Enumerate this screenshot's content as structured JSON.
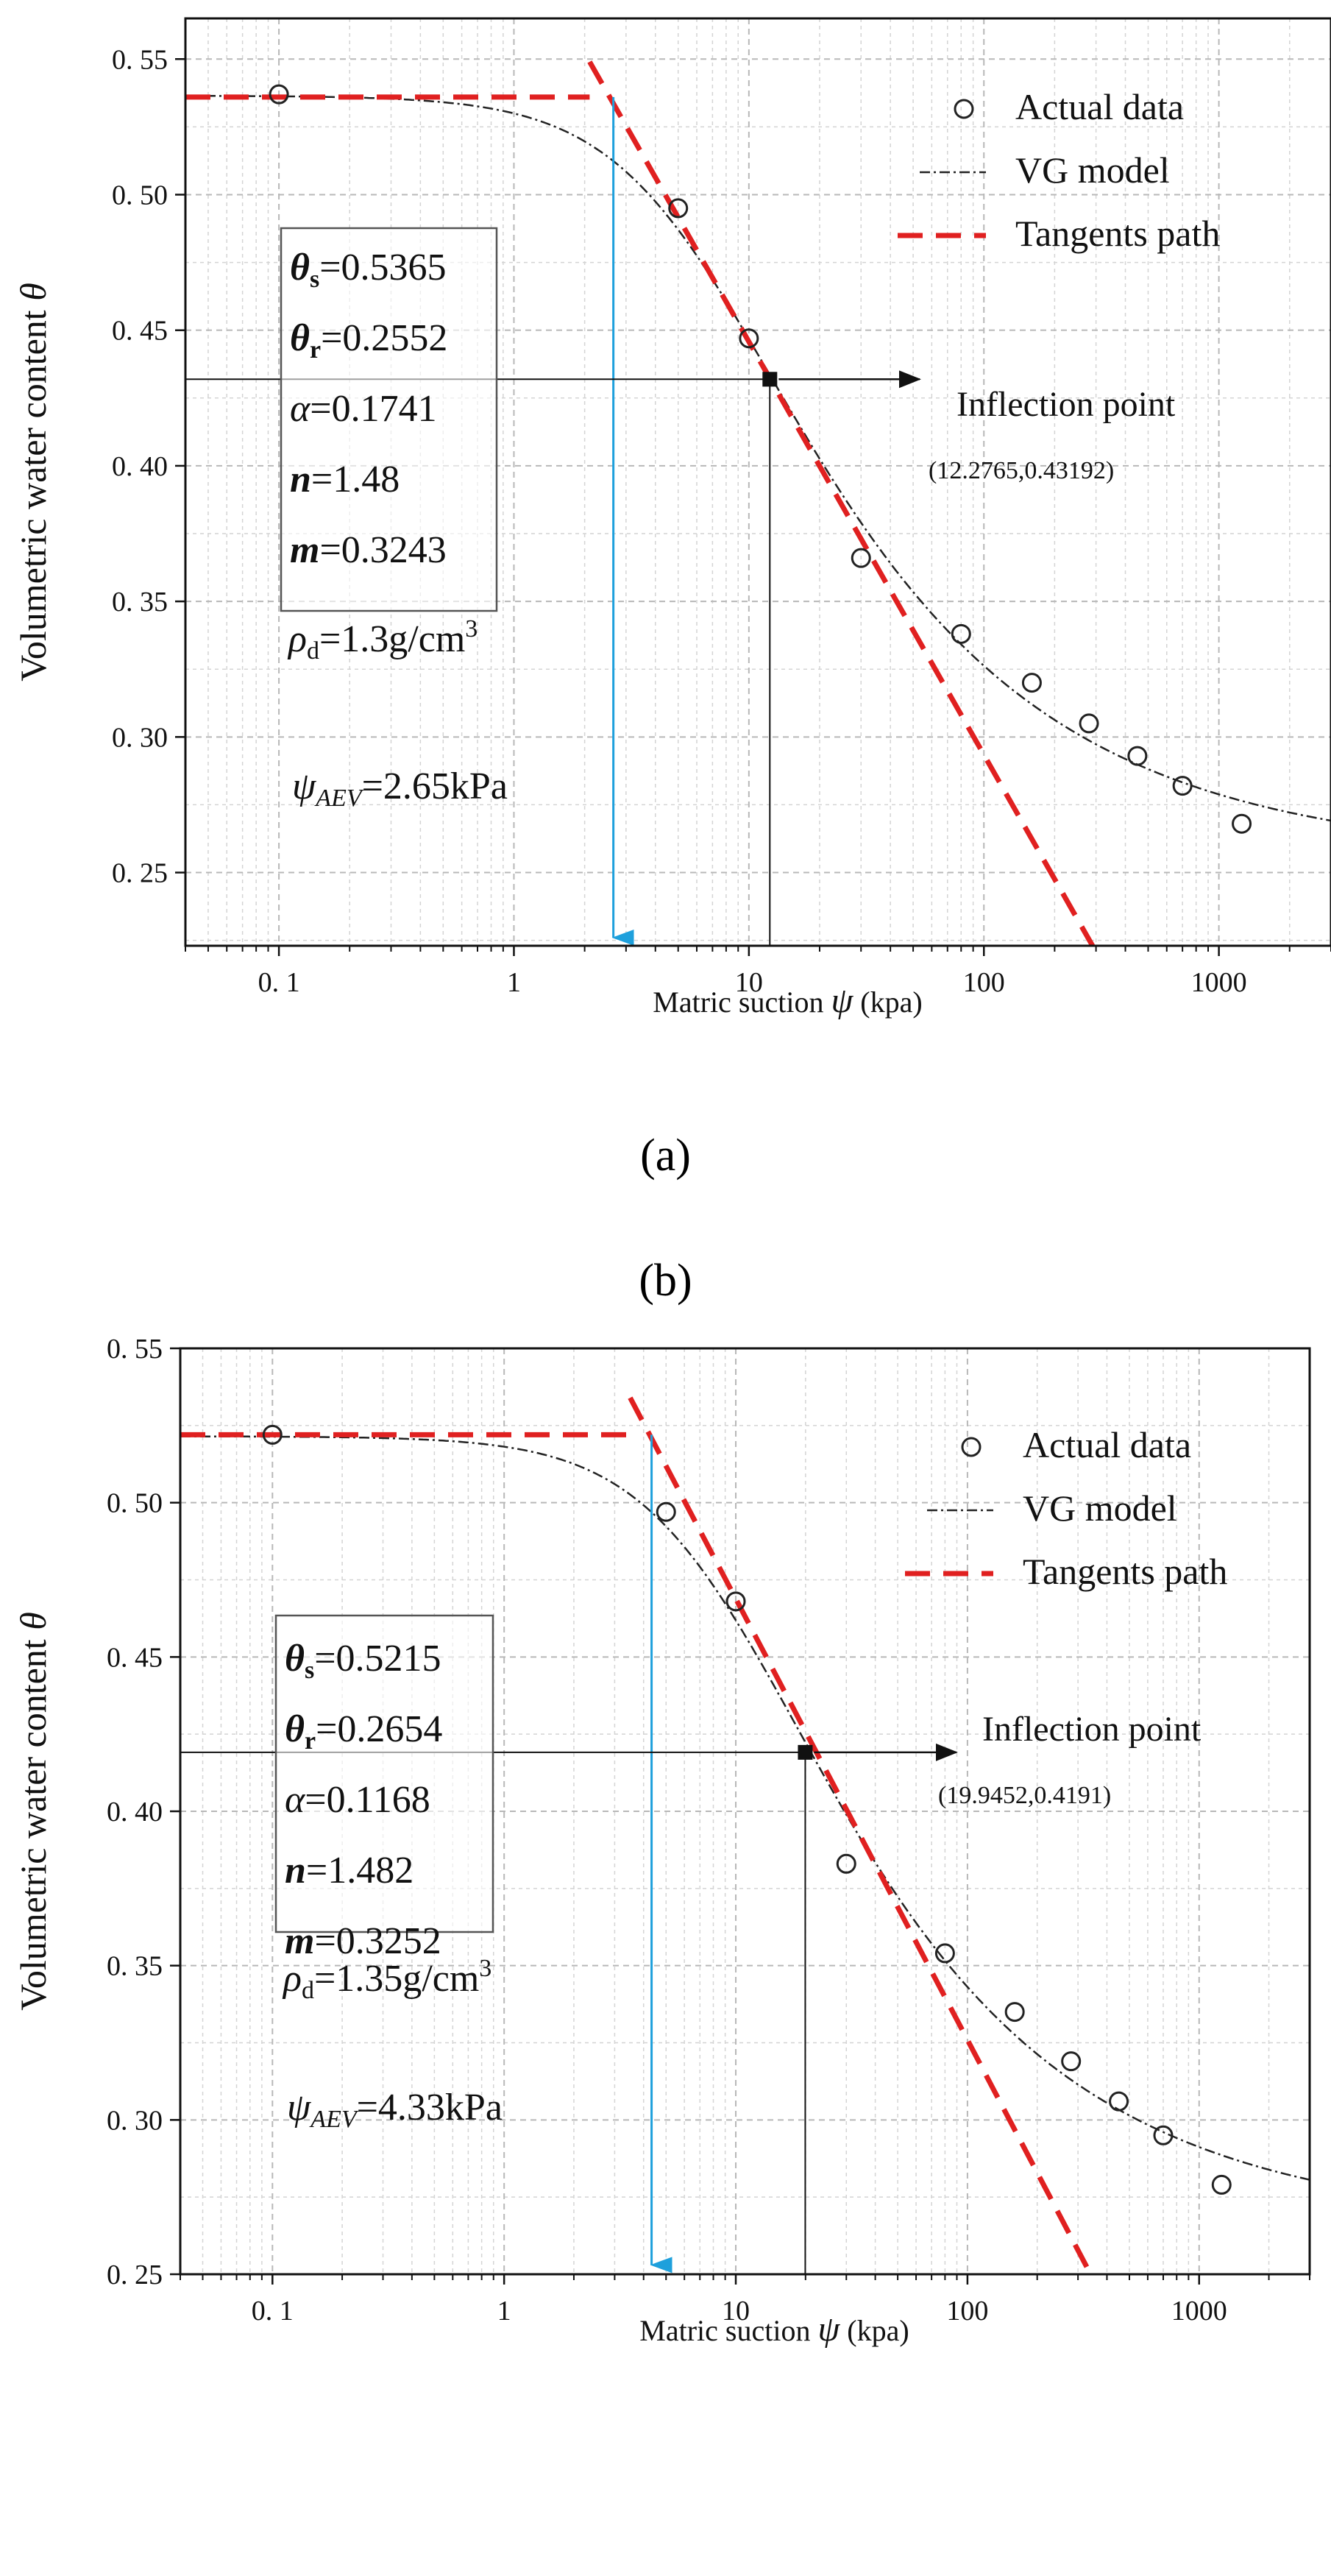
{
  "chart_data": [
    {
      "id": "a",
      "type": "scatter",
      "panel_label": "(a)",
      "xlabel": "Matric suction",
      "xsymbol": "ψ",
      "xunit": "(kpa)",
      "ylabel": "Volumetric water content",
      "ysymbol": "θ",
      "xscale": "log",
      "xlim": [
        0.04,
        3000
      ],
      "ylim": [
        0.223,
        0.565
      ],
      "xticks": [
        0.1,
        1,
        10,
        100,
        1000
      ],
      "xtick_labels": [
        "0. 1",
        "1",
        "10",
        "100",
        "1000"
      ],
      "yticks": [
        0.25,
        0.3,
        0.35,
        0.4,
        0.45,
        0.5,
        0.55
      ],
      "ytick_labels": [
        "0. 25",
        "0. 30",
        "0. 35",
        "0. 40",
        "0. 45",
        "0. 50",
        "0. 55"
      ],
      "grid": true,
      "legend": {
        "placement": "top-right",
        "entries": [
          {
            "label": "Actual data",
            "style": "open-circle"
          },
          {
            "label": "VG model",
            "style": "dash-dot"
          },
          {
            "label": "Tangents path",
            "style": "red-dashed"
          }
        ]
      },
      "actual_data": {
        "x": [
          0.1,
          5,
          10,
          30,
          80,
          160,
          280,
          450,
          700,
          1250
        ],
        "y": [
          0.537,
          0.495,
          0.447,
          0.366,
          0.338,
          0.32,
          0.305,
          0.293,
          0.282,
          0.268
        ]
      },
      "vg_model": {
        "theta_s": 0.5365,
        "theta_r": 0.2552,
        "alpha": 0.1741,
        "n": 1.48,
        "m": 0.3243
      },
      "tangents_path": {
        "horizontal": {
          "x": [
            0.04,
            2.1
          ],
          "y": [
            0.536,
            0.536
          ]
        },
        "slope": {
          "x": [
            2.1,
            290
          ],
          "y": [
            0.549,
            0.223
          ]
        }
      },
      "inflection": {
        "x": 12.2765,
        "y": 0.43192,
        "label": "Inflection point",
        "coords_label": "(12.2765,0.43192)"
      },
      "aev_arrow": {
        "x": 2.65,
        "y_from": 0.536,
        "y_to": 0.226
      },
      "param_box": [
        {
          "sym": "θ",
          "sub": "s",
          "val": "=0.5365"
        },
        {
          "sym": "θ",
          "sub": "r",
          "val": "=0.2552"
        },
        {
          "sym": "α",
          "sub": "",
          "val": "=0.1741"
        },
        {
          "sym": "n",
          "sub": "",
          "val": "=1.48"
        },
        {
          "sym": "m",
          "sub": "",
          "val": "=0.3243"
        }
      ],
      "density": {
        "sym": "ρ",
        "sub": "d",
        "val": "=1.3g/cm",
        "sup": "3"
      },
      "aev_text": {
        "sym": "ψ",
        "sub": "AEV",
        "val": "=2.65kPa"
      },
      "colors": {
        "tangent": "#e02020",
        "arrow": "#1ea0dc",
        "data": "#222222"
      }
    },
    {
      "id": "b",
      "type": "scatter",
      "panel_label": "(b)",
      "xlabel": "Matric suction",
      "xsymbol": "ψ",
      "xunit": "(kpa)",
      "ylabel": "Volumetric water content",
      "ysymbol": "θ",
      "xscale": "log",
      "xlim": [
        0.04,
        3000
      ],
      "ylim": [
        0.25,
        0.55
      ],
      "xticks": [
        0.1,
        1,
        10,
        100,
        1000
      ],
      "xtick_labels": [
        "0. 1",
        "1",
        "10",
        "100",
        "1000"
      ],
      "yticks": [
        0.25,
        0.3,
        0.35,
        0.4,
        0.45,
        0.5,
        0.55
      ],
      "ytick_labels": [
        "0. 25",
        "0. 30",
        "0. 35",
        "0. 40",
        "0. 45",
        "0. 50",
        "0. 55"
      ],
      "grid": true,
      "legend": {
        "placement": "top-right",
        "entries": [
          {
            "label": "Actual data",
            "style": "open-circle"
          },
          {
            "label": "VG model",
            "style": "dash-dot"
          },
          {
            "label": "Tangents path",
            "style": "red-dashed"
          }
        ]
      },
      "actual_data": {
        "x": [
          0.1,
          5,
          10,
          30,
          80,
          160,
          280,
          450,
          700,
          1250
        ],
        "y": [
          0.522,
          0.497,
          0.468,
          0.383,
          0.354,
          0.335,
          0.319,
          0.306,
          0.295,
          0.279
        ]
      },
      "vg_model": {
        "theta_s": 0.5215,
        "theta_r": 0.2654,
        "alpha": 0.1168,
        "n": 1.482,
        "m": 0.3252
      },
      "tangents_path": {
        "horizontal": {
          "x": [
            0.04,
            3.5
          ],
          "y": [
            0.522,
            0.522
          ]
        },
        "slope": {
          "x": [
            3.5,
            340
          ],
          "y": [
            0.534,
            0.25
          ]
        }
      },
      "inflection": {
        "x": 19.9452,
        "y": 0.4191,
        "label": "Inflection point",
        "coords_label": "(19.9452,0.4191)"
      },
      "aev_arrow": {
        "x": 4.33,
        "y_from": 0.522,
        "y_to": 0.253
      },
      "param_box": [
        {
          "sym": "θ",
          "sub": "s",
          "val": "=0.5215"
        },
        {
          "sym": "θ",
          "sub": "r",
          "val": "=0.2654"
        },
        {
          "sym": "α",
          "sub": "",
          "val": "=0.1168"
        },
        {
          "sym": "n",
          "sub": "",
          "val": "=1.482"
        },
        {
          "sym": "m",
          "sub": "",
          "val": "=0.3252"
        }
      ],
      "density": {
        "sym": "ρ",
        "sub": "d",
        "val": "=1.35g/cm",
        "sup": "3"
      },
      "aev_text": {
        "sym": "ψ",
        "sub": "AEV",
        "val": "=4.33kPa"
      },
      "colors": {
        "tangent": "#e02020",
        "arrow": "#1ea0dc",
        "data": "#222222"
      }
    }
  ]
}
